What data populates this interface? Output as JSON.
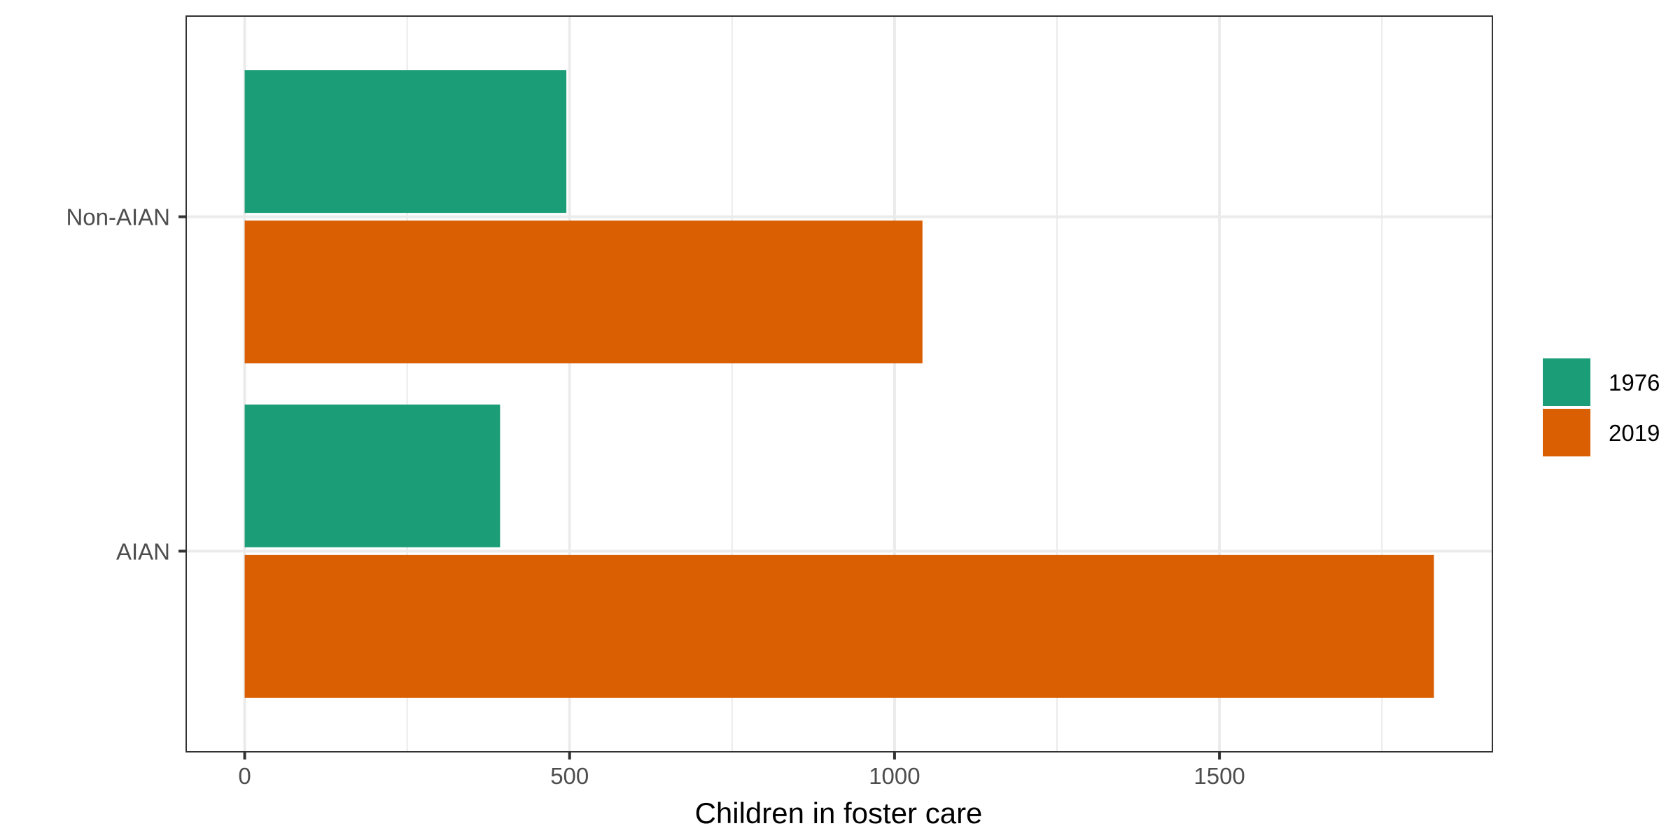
{
  "chart_data": {
    "type": "bar",
    "orientation": "horizontal",
    "categories": [
      "Non-AIAN",
      "AIAN"
    ],
    "series": [
      {
        "name": "1976",
        "color": "#1b9e77",
        "values": [
          495,
          393
        ]
      },
      {
        "name": "2019",
        "color": "#d95f02",
        "values": [
          1043,
          1830
        ]
      }
    ],
    "xlabel": "Children in foster care",
    "ylabel": "",
    "title": "",
    "xlim": [
      -90,
      1920
    ],
    "x_ticks": [
      0,
      500,
      1000,
      1500
    ],
    "x_minor_ticks": [
      250,
      750,
      1250,
      1750
    ],
    "grid": true,
    "legend_position": "right"
  }
}
